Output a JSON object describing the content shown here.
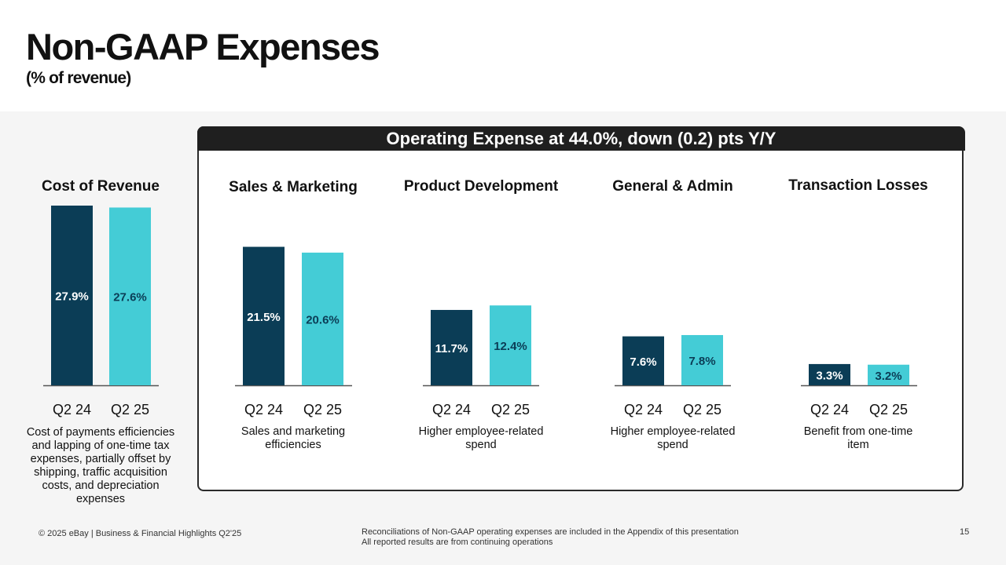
{
  "header": {
    "title": "Non-GAAP Expenses",
    "subtitle": "(% of revenue)"
  },
  "opex_banner": "Operating Expense at 44.0%, down (0.2) pts Y/Y",
  "colors": {
    "q2_24": "#0b3d56",
    "q2_25": "#44ccd6",
    "banner": "#1f1f1f"
  },
  "chart_data": [
    {
      "type": "bar",
      "title": "Cost of Revenue",
      "categories": [
        "Q2 24",
        "Q2 25"
      ],
      "values": [
        27.9,
        27.6
      ],
      "labels": [
        "27.9%",
        "27.6%"
      ],
      "note": "Cost of payments efficiencies and lapping of one-time tax expenses, partially offset by shipping, traffic acquisition costs, and depreciation expenses"
    },
    {
      "type": "bar",
      "title": "Sales & Marketing",
      "categories": [
        "Q2 24",
        "Q2 25"
      ],
      "values": [
        21.5,
        20.6
      ],
      "labels": [
        "21.5%",
        "20.6%"
      ],
      "note": "Sales and marketing efficiencies"
    },
    {
      "type": "bar",
      "title": "Product Development",
      "categories": [
        "Q2 24",
        "Q2 25"
      ],
      "values": [
        11.7,
        12.4
      ],
      "labels": [
        "11.7%",
        "12.4%"
      ],
      "note": "Higher employee-related spend"
    },
    {
      "type": "bar",
      "title": "General & Admin",
      "categories": [
        "Q2 24",
        "Q2 25"
      ],
      "values": [
        7.6,
        7.8
      ],
      "labels": [
        "7.6%",
        "7.8%"
      ],
      "note": "Higher employee-related spend"
    },
    {
      "type": "bar",
      "title": "Transaction Losses",
      "categories": [
        "Q2 24",
        "Q2 25"
      ],
      "values": [
        3.3,
        3.2
      ],
      "labels": [
        "3.3%",
        "3.2%"
      ],
      "note": "Benefit from one-time item"
    }
  ],
  "footer": {
    "copyright": "© 2025 eBay | Business & Financial Highlights Q2'25",
    "reconciliation": "Reconciliations of Non-GAAP operating expenses are included in the Appendix of this presentation",
    "continuing_ops": "All reported results are from continuing operations",
    "page_number": "15"
  }
}
